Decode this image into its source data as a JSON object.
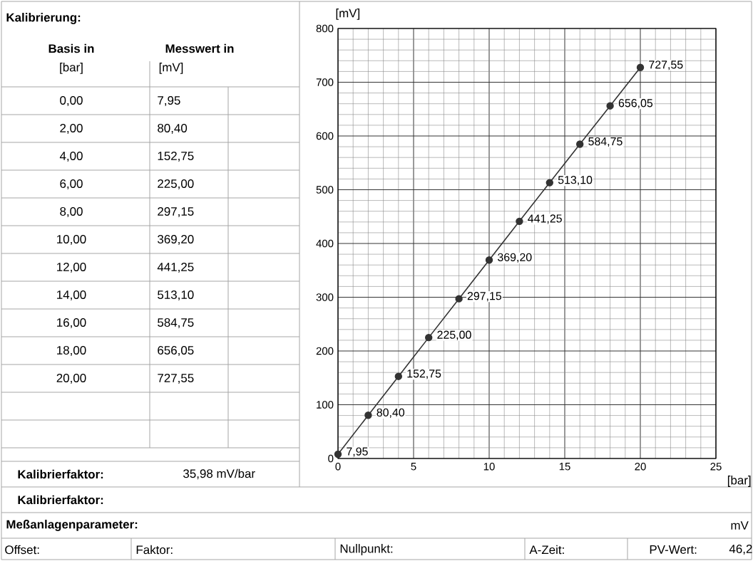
{
  "chart_data": {
    "type": "line",
    "xlabel": "[bar]",
    "ylabel": "[mV]",
    "x": [
      0,
      2,
      4,
      6,
      8,
      10,
      12,
      14,
      16,
      18,
      20
    ],
    "values": [
      7.95,
      80.4,
      152.75,
      225.0,
      297.15,
      369.2,
      441.25,
      513.1,
      584.75,
      656.05,
      727.55
    ],
    "value_labels": [
      "7,95",
      "80,40",
      "152,75",
      "225,00",
      "297,15",
      "369,20",
      "441,25",
      "513,10",
      "584,75",
      "656,05",
      "727,55"
    ],
    "color": "#333333",
    "marker": "circle",
    "line_style": "solid",
    "grid": true,
    "xlim": [
      0,
      25
    ],
    "xticks": [
      0,
      5,
      10,
      15,
      20,
      25
    ],
    "ylim": [
      0,
      800
    ],
    "yticks": [
      0,
      100,
      200,
      300,
      400,
      500,
      600,
      700,
      800
    ],
    "annotations": [
      "Kalibrierung:",
      "Basis in",
      "Messwert in",
      "[bar]",
      "[mV]",
      "0,00",
      "2,00",
      "4,00",
      "6,00",
      "8,00",
      "10,00",
      "12,00",
      "14,00",
      "16,00",
      "18,00",
      "20,00",
      "Kalibrierfaktor:",
      "35,98 mV/bar",
      "Kalibrierfaktor:",
      "Meßanlagenparameter:",
      "mV",
      "Offset:",
      "Faktor:",
      "Nullpunkt:",
      "A-Zeit:",
      "PV-Wert:",
      "46,2"
    ]
  }
}
